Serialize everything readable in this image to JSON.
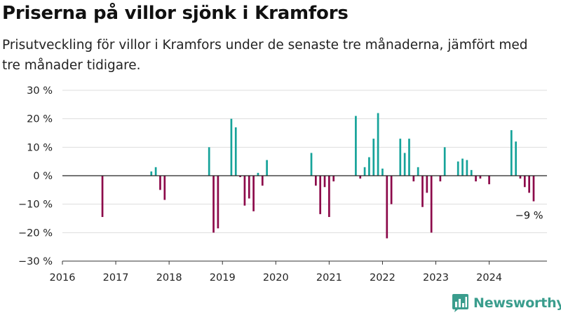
{
  "header": {
    "title": "Priserna på villor sjönk i Kramfors",
    "subtitle": "Prisutveckling för villor i Kramfors under de senaste tre månaderna, jämfört med tre månader tidigare."
  },
  "branding": {
    "name": "Newsworthy",
    "icon": "newsworthy-chart-logo-icon",
    "color": "#3a9d8d"
  },
  "colors": {
    "positive": "#16a39a",
    "negative": "#8c0a4a",
    "grid": "#dddddd",
    "zero_line": "#222222"
  },
  "chart_data": {
    "type": "bar",
    "title": "Priserna på villor sjönk i Kramfors",
    "xlabel": "",
    "ylabel": "",
    "y_ticks": [
      "30 %",
      "20 %",
      "10 %",
      "0 %",
      "−10 %",
      "−20 %",
      "−30 %"
    ],
    "ylim": [
      -30,
      30
    ],
    "x_ticks": [
      "2016",
      "2017",
      "2018",
      "2019",
      "2020",
      "2021",
      "2022",
      "2023",
      "2024"
    ],
    "xlim": [
      "2016-01",
      "2025-02"
    ],
    "grid": true,
    "annotation": {
      "text": "−9 %",
      "x": "2024-10",
      "value": -9
    },
    "series": [
      {
        "x": [
          "2016-10",
          "2017-09",
          "2017-10",
          "2017-11",
          "2017-12",
          "2018-10",
          "2018-11",
          "2018-12",
          "2019-03",
          "2019-04",
          "2019-05",
          "2019-06",
          "2019-07",
          "2019-08",
          "2019-09",
          "2019-10",
          "2019-11",
          "2020-09",
          "2020-10",
          "2020-11",
          "2020-12",
          "2021-01",
          "2021-02",
          "2021-07",
          "2021-08",
          "2021-09",
          "2021-10",
          "2021-11",
          "2021-12",
          "2022-01",
          "2022-02",
          "2022-03",
          "2022-05",
          "2022-06",
          "2022-07",
          "2022-08",
          "2022-09",
          "2022-10",
          "2022-11",
          "2022-12",
          "2023-02",
          "2023-03",
          "2023-06",
          "2023-07",
          "2023-08",
          "2023-09",
          "2023-10",
          "2023-11",
          "2024-01",
          "2024-06",
          "2024-07",
          "2024-08",
          "2024-09",
          "2024-10",
          "2024-11"
        ],
        "values": [
          -14.5,
          1.5,
          3,
          -5,
          -8.5,
          10,
          -20,
          -18.5,
          20,
          17,
          -0.5,
          -10.5,
          -8,
          -12.5,
          1,
          -3.5,
          5.5,
          8,
          -3.5,
          -13.5,
          -4,
          -14.5,
          -2,
          21,
          -1,
          3,
          6.5,
          13,
          22,
          2.5,
          -22,
          -10,
          13,
          8,
          13,
          -2,
          3,
          -11,
          -6,
          -20,
          -2,
          10,
          5,
          6,
          5.5,
          2,
          -2,
          -1,
          -3,
          16,
          12,
          -1,
          -4,
          -6,
          -9
        ]
      }
    ]
  }
}
